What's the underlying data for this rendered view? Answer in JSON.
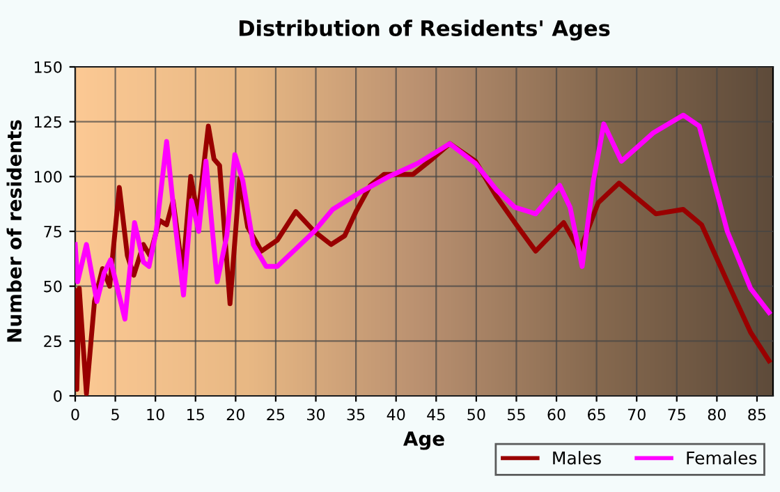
{
  "chart_data": {
    "type": "line",
    "title": "Distribution of Residents' Ages",
    "xlabel": "Age",
    "ylabel": "Number of residents",
    "xlim": [
      0,
      87
    ],
    "xticks": [
      0,
      5,
      10,
      15,
      20,
      25,
      30,
      35,
      40,
      45,
      50,
      55,
      60,
      65,
      70,
      75,
      80,
      85
    ],
    "ylim": [
      0,
      150
    ],
    "yticks": [
      0,
      25,
      50,
      75,
      100,
      125,
      150
    ],
    "grid": true,
    "legend": "bottom right",
    "marker": "none",
    "line_style": "solid",
    "series": [
      {
        "name": "Males",
        "color": "#990000",
        "x": [
          0,
          0.2,
          0.5,
          1.4,
          2.4,
          3.4,
          4.3,
          5.5,
          6.5,
          7.3,
          8.5,
          9.3,
          10.5,
          11.4,
          12.2,
          13.4,
          14.4,
          15.3,
          16.6,
          17.3,
          18,
          19.3,
          20.5,
          21.5,
          23.2,
          25.2,
          27.5,
          29.8,
          31.9,
          33.6,
          35,
          36.8,
          38.5,
          40,
          42.1,
          44.5,
          46.7,
          49.9,
          52.5,
          55,
          57.4,
          59,
          60.9,
          62.9,
          65.2,
          67.8,
          70.1,
          72.4,
          75.8,
          78.1,
          81.3,
          84.2,
          86.5
        ],
        "values": [
          48,
          3,
          49,
          1,
          43,
          58,
          50,
          95,
          64,
          55,
          69,
          64,
          80,
          78,
          89,
          56,
          100,
          82,
          123,
          108,
          105,
          42,
          99,
          77,
          66,
          71,
          84,
          75,
          69,
          73,
          84,
          96,
          101,
          101,
          101,
          108,
          115,
          107,
          91,
          78,
          66,
          72,
          79,
          66,
          88,
          97,
          90,
          83,
          85,
          78,
          52,
          29,
          16
        ]
      },
      {
        "name": "Females",
        "color": "#ff00ff",
        "x": [
          0,
          0.3,
          1.4,
          2.7,
          3.6,
          4.4,
          6.2,
          7.4,
          8.5,
          9.2,
          10.1,
          11.4,
          12.5,
          13.5,
          14.5,
          15.4,
          16.3,
          17.7,
          18.9,
          19.9,
          20.9,
          22.2,
          23.8,
          25.2,
          27.5,
          29.8,
          32.1,
          35.6,
          39.1,
          42.7,
          46.7,
          49.9,
          52.5,
          54.8,
          57.4,
          60.4,
          61.7,
          63.2,
          64.6,
          65.9,
          68.1,
          72.1,
          75.8,
          77.8,
          81.3,
          84.2,
          86.5
        ],
        "values": [
          69,
          52,
          69,
          43,
          56,
          62,
          35,
          79,
          61,
          59,
          75,
          116,
          77,
          46,
          89,
          75,
          107,
          52,
          73,
          110,
          98,
          69,
          59,
          59,
          67,
          75,
          85,
          93,
          100,
          106,
          115,
          106,
          94,
          86,
          83,
          96,
          86,
          59,
          98,
          124,
          107,
          120,
          128,
          123,
          75,
          49,
          38
        ]
      }
    ]
  }
}
